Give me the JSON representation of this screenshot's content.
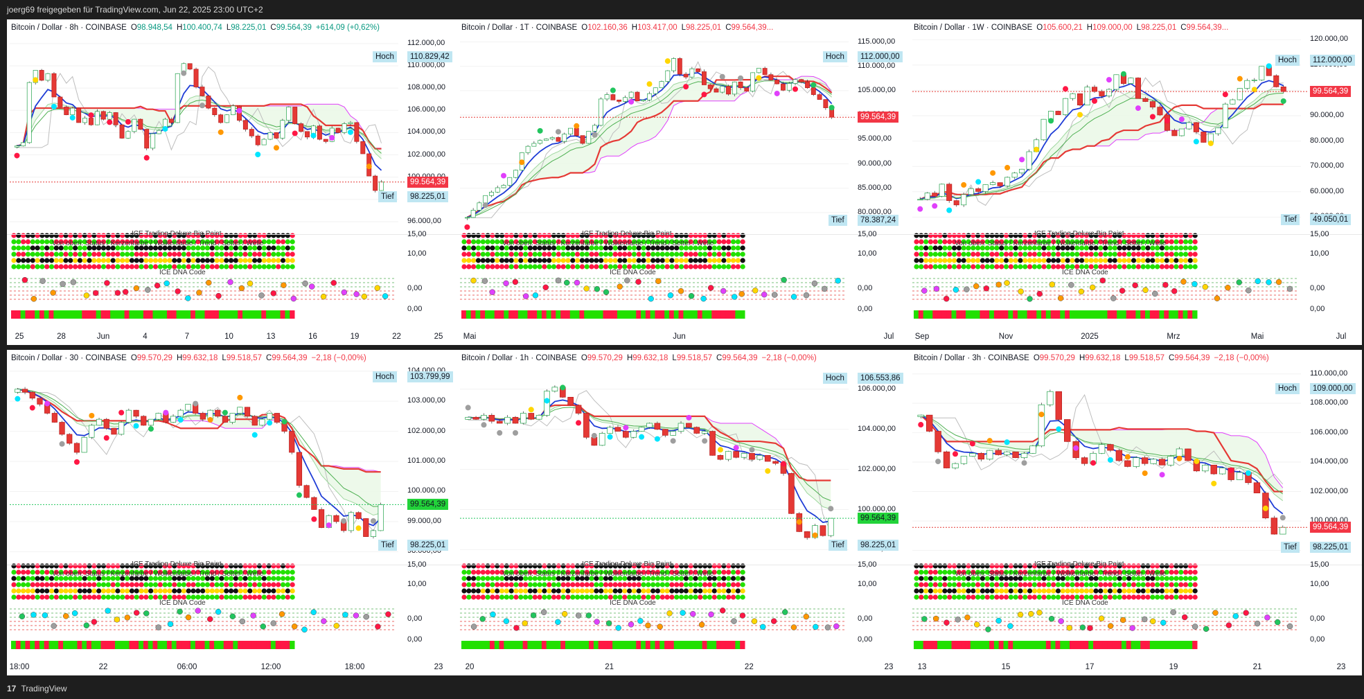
{
  "header": {
    "text": "joerg69 freigegeben für TradingView.com, Jun 22, 2025 23:00 UTC+2"
  },
  "footer": {
    "logo": "17",
    "brand": "TradingView"
  },
  "colors": {
    "up": "#22c55e",
    "down": "#e53935",
    "accent": "#2962ff"
  },
  "subpanels": {
    "bigpoint_title": "ICE Trading Deluxe Big Point",
    "status_title": "Von oben: Status / Kerzenfarbe / Wolkenfarbe / Trend / Setter / Welle",
    "dna_title": "ICE DNA Code",
    "axis_15": "15,00",
    "axis_10": "10,00",
    "axis_0a": "0,00",
    "axis_0b": "0,00"
  },
  "panels": [
    {
      "symbol": "Bitcoin / Dollar · 8h · COINBASE",
      "O_label": "O",
      "O": "98.948,54",
      "H_label": "H",
      "H": "100.400,74",
      "L_label": "L",
      "L": "98.225,01",
      "C_label": "C",
      "C": "99.564,39",
      "change": "+614,09 (+0,62%)",
      "change_dir": "up",
      "high_label": "Hoch",
      "high_value": "110.829,42",
      "low_label": "Tief",
      "low_value": "98.225,01",
      "last_value": "99.564,39",
      "last_color": "red",
      "y_ticks": [
        "112.000,00",
        "110.000,00",
        "108.000,00",
        "106.000,00",
        "104.000,00",
        "102.000,00",
        "100.000,00",
        "98.000,00",
        "96.000,00"
      ],
      "x_ticks": [
        "25",
        "28",
        "Jun",
        "4",
        "7",
        "10",
        "13",
        "16",
        "19",
        "22",
        "25"
      ],
      "chart_data": {
        "type": "candlestick",
        "ylim": [
          95500,
          112800
        ],
        "close_series": [
          102800,
          103100,
          108500,
          109600,
          108700,
          109300,
          107200,
          106300,
          105600,
          106200,
          104900,
          105300,
          104700,
          105900,
          105200,
          105800,
          104700,
          103500,
          104100,
          105200,
          104300,
          102600,
          103900,
          104200,
          105200,
          104900,
          109300,
          110200,
          109700,
          108100,
          107300,
          106200,
          105600,
          104900,
          105600,
          106400,
          105100,
          104300,
          103700,
          102900,
          103400,
          104000,
          103500,
          105100,
          106300,
          104800,
          104100,
          103600,
          104600,
          103400,
          103200,
          104400,
          104000,
          104800,
          104900,
          103200,
          102100,
          100100,
          98800,
          99564
        ]
      }
    },
    {
      "symbol": "Bitcoin / Dollar · 1T · COINBASE",
      "O_label": "O",
      "O": "102.160,36",
      "H_label": "H",
      "H": "103.417,00",
      "L_label": "L",
      "L": "98.225,01",
      "C_label": "C",
      "C": "99.564,39...",
      "change": "",
      "change_dir": "down",
      "high_label": "Hoch",
      "high_value": "112.000,00",
      "low_label": "Tief",
      "low_value": "78.387,24",
      "last_value": "99.564,39",
      "last_color": "red",
      "y_ticks": [
        "115.000,00",
        "110.000,00",
        "105.000,00",
        "100.000,00",
        "95.000,00",
        "90.000,00",
        "85.000,00",
        "80.000,00"
      ],
      "x_ticks": [
        "Mai",
        "Jun",
        "Jul"
      ],
      "chart_data": {
        "type": "candlestick",
        "ylim": [
          77000,
          116500
        ],
        "close_series": [
          79000,
          80500,
          82000,
          83500,
          84200,
          85100,
          85600,
          87200,
          88700,
          92300,
          93600,
          94200,
          94800,
          95100,
          95400,
          94600,
          96100,
          97300,
          95800,
          94200,
          96700,
          97900,
          103300,
          104200,
          103100,
          102800,
          103600,
          104700,
          102900,
          103100,
          104400,
          105600,
          106900,
          109100,
          111600,
          108400,
          107800,
          109500,
          108900,
          106200,
          105400,
          104700,
          105900,
          104300,
          106800,
          105600,
          104900,
          108700,
          109600,
          108300,
          107200,
          106400,
          105100,
          106500,
          107300,
          106800,
          105600,
          104200,
          103200,
          101500,
          99564
        ]
      }
    },
    {
      "symbol": "Bitcoin / Dollar · 1W · COINBASE",
      "O_label": "O",
      "O": "105.600,21",
      "H_label": "H",
      "H": "109.000,00",
      "L_label": "L",
      "L": "98.225,01",
      "C_label": "C",
      "C": "99.564,39...",
      "change": "",
      "change_dir": "down",
      "high_label": "Hoch",
      "high_value": "112.000,00",
      "low_label": "Tief",
      "low_value": "49.050,01",
      "last_value": "99.564,39",
      "last_color": "red",
      "y_ticks": [
        "120.000,00",
        "110.000,00",
        "100.000,00",
        "90.000,00",
        "80.000,00",
        "70.000,00",
        "60.000,00",
        "50.000,00"
      ],
      "x_ticks": [
        "Sep",
        "Nov",
        "2025",
        "Mrz",
        "Mai",
        "Jul"
      ],
      "chart_data": {
        "type": "candlestick",
        "ylim": [
          46000,
          122000
        ],
        "close_series": [
          57000,
          59500,
          58200,
          63000,
          56500,
          54800,
          58900,
          61200,
          60100,
          62800,
          63600,
          62300,
          65700,
          67400,
          68900,
          75800,
          80500,
          88600,
          91800,
          90400,
          96800,
          98700,
          94200,
          101300,
          99600,
          97800,
          100400,
          106200,
          102700,
          104900,
          96800,
          95600,
          93400,
          90300,
          84200,
          82100,
          84800,
          87300,
          83600,
          79500,
          82900,
          85200,
          94600,
          96300,
          100800,
          103900,
          104100,
          109500,
          105800,
          101400,
          99564
        ]
      }
    },
    {
      "symbol": "Bitcoin / Dollar · 30 · COINBASE",
      "O_label": "O",
      "O": "99.570,29",
      "H_label": "H",
      "H": "99.632,18",
      "L_label": "L",
      "L": "99.518,57",
      "C_label": "C",
      "C": "99.564,39",
      "change": "−2,18 (−0,00%)",
      "change_dir": "down",
      "high_label": "Hoch",
      "high_value": "103.799,99",
      "low_label": "Tief",
      "low_value": "98.225,01",
      "last_value": "99.564,39",
      "last_color": "green",
      "y_ticks": [
        "104.000,00",
        "103.000,00",
        "102.000,00",
        "101.000,00",
        "100.000,00",
        "99.000,00",
        "98.000,00"
      ],
      "x_ticks": [
        "18:00",
        "22",
        "06:00",
        "12:00",
        "18:00",
        "23"
      ],
      "chart_data": {
        "type": "candlestick",
        "ylim": [
          97800,
          104200
        ],
        "close_series": [
          103400,
          103300,
          103100,
          102900,
          102600,
          102300,
          101900,
          101600,
          101300,
          101800,
          102200,
          102400,
          102100,
          101900,
          102300,
          102700,
          102500,
          102200,
          102400,
          102600,
          102300,
          102500,
          102700,
          102900,
          102600,
          102400,
          102700,
          102500,
          102300,
          102600,
          102800,
          102500,
          102200,
          102400,
          102600,
          102300,
          102000,
          101300,
          100200,
          99800,
          99400,
          98800,
          99200,
          99000,
          98700,
          99300,
          99100,
          98500,
          98700,
          99564
        ]
      }
    },
    {
      "symbol": "Bitcoin / Dollar · 1h · COINBASE",
      "O_label": "O",
      "O": "99.570,29",
      "H_label": "H",
      "H": "99.632,18",
      "L_label": "L",
      "L": "99.518,57",
      "C_label": "C",
      "C": "99.564,39",
      "change": "−2,18 (−0,00%)",
      "change_dir": "down",
      "high_label": "Hoch",
      "high_value": "106.553,86",
      "low_label": "Tief",
      "low_value": "98.225,01",
      "last_value": "99.564,39",
      "last_color": "green",
      "y_ticks": [
        "106.000,00",
        "104.000,00",
        "102.000,00",
        "100.000,00",
        "98.000,00"
      ],
      "x_ticks": [
        "20",
        "21",
        "22",
        "23"
      ],
      "chart_data": {
        "type": "candlestick",
        "ylim": [
          97600,
          107200
        ],
        "close_series": [
          104600,
          104500,
          104700,
          104400,
          104300,
          104600,
          104300,
          104800,
          104500,
          104700,
          105900,
          106100,
          105600,
          105200,
          104800,
          103600,
          103200,
          103800,
          104100,
          103900,
          103600,
          103900,
          104100,
          104300,
          104000,
          103700,
          103900,
          104300,
          104100,
          103800,
          103900,
          102700,
          102500,
          102900,
          102600,
          102800,
          102500,
          102700,
          102400,
          102300,
          101800,
          99800,
          98900,
          98600,
          99200,
          98700,
          99564
        ]
      }
    },
    {
      "symbol": "Bitcoin / Dollar · 3h · COINBASE",
      "O_label": "O",
      "O": "99.570,29",
      "H_label": "H",
      "H": "99.632,18",
      "L_label": "L",
      "L": "99.518,57",
      "C_label": "C",
      "C": "99.564,39",
      "change": "−2,18 (−0,00%)",
      "change_dir": "down",
      "high_label": "Hoch",
      "high_value": "109.000,00",
      "low_label": "Tief",
      "low_value": "98.225,01",
      "last_value": "99.564,39",
      "last_color": "red",
      "y_ticks": [
        "110.000,00",
        "108.000,00",
        "106.000,00",
        "104.000,00",
        "102.000,00",
        "100.000,00",
        "98.000,00"
      ],
      "x_ticks": [
        "13",
        "15",
        "17",
        "19",
        "21",
        "23"
      ],
      "chart_data": {
        "type": "candlestick",
        "ylim": [
          97500,
          110600
        ],
        "close_series": [
          107200,
          106100,
          104700,
          103600,
          103900,
          104400,
          104600,
          104200,
          104800,
          104500,
          104700,
          104300,
          104600,
          105100,
          107900,
          108800,
          106900,
          105400,
          104300,
          103900,
          104600,
          105200,
          104800,
          104100,
          103700,
          104300,
          103900,
          104200,
          103800,
          104400,
          104900,
          104100,
          103400,
          103800,
          103200,
          103600,
          102800,
          103300,
          102600,
          101900,
          100200,
          99100,
          99564
        ]
      }
    }
  ]
}
